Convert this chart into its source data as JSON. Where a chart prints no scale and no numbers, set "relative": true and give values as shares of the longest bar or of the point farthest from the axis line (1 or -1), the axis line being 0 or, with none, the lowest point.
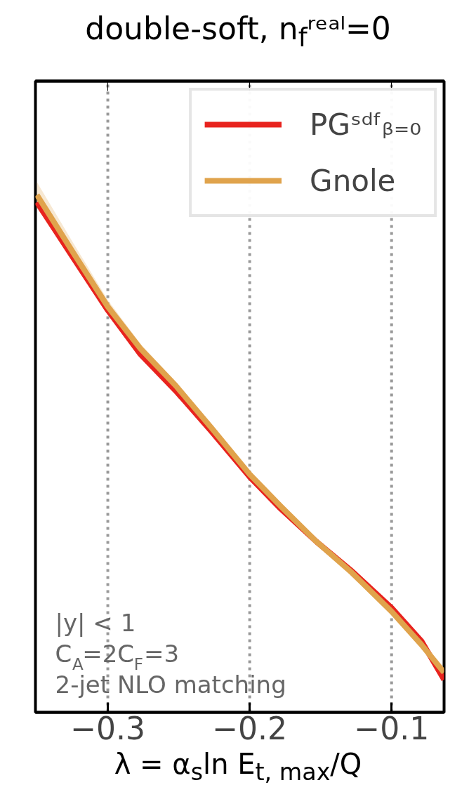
{
  "chart_data": {
    "type": "line",
    "title": "double-soft, n$_{f}$ʳᵉᵃˡ=0",
    "xlabel": "λ = α$_{s}$ln E$_{t, max}$/Q",
    "relative": true,
    "x": [
      -0.35,
      -0.325,
      -0.3,
      -0.277,
      -0.252,
      -0.227,
      -0.2,
      -0.178,
      -0.153,
      -0.128,
      -0.1,
      -0.079,
      -0.063
    ],
    "xlim": [
      -0.351,
      -0.063
    ],
    "xticks": [
      -0.3,
      -0.2,
      -0.1
    ],
    "series": [
      {
        "name": "PGˢᵈᶠᵦ₌₀",
        "color": "#e8231e",
        "values": [
          0.986,
          0.881,
          0.777,
          0.692,
          0.621,
          0.543,
          0.455,
          0.393,
          0.33,
          0.273,
          0.202,
          0.138,
          0.063
        ]
      },
      {
        "name": "Gnole",
        "color": "#e0a34c",
        "values": [
          1.0,
          0.891,
          0.784,
          0.703,
          0.631,
          0.55,
          0.46,
          0.398,
          0.33,
          0.27,
          0.195,
          0.131,
          0.077
        ],
        "lower": [
          0.975,
          0.872,
          0.772,
          0.694,
          0.623,
          0.544,
          0.455,
          0.394,
          0.326,
          0.266,
          0.191,
          0.127,
          0.073
        ],
        "upper": [
          1.025,
          0.91,
          0.797,
          0.712,
          0.639,
          0.556,
          0.465,
          0.402,
          0.334,
          0.274,
          0.199,
          0.135,
          0.081
        ]
      }
    ],
    "annotations": [
      "|y| < 1",
      "C$_{A}$=2C$_{F}$=3",
      "2-jet NLO matching"
    ],
    "legend": "top right",
    "grid": "x",
    "line_style": "solid"
  }
}
